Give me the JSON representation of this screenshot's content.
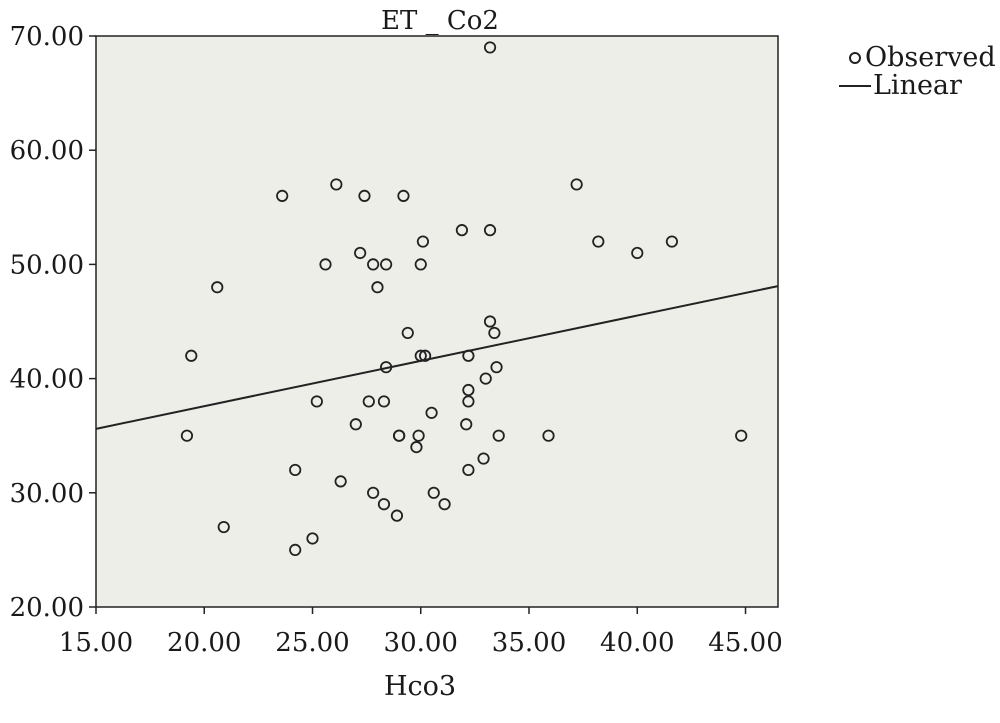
{
  "chart_data": {
    "type": "scatter",
    "title": "ET _ Co2",
    "xlabel": "Hco3",
    "ylabel": "",
    "xlim": [
      15,
      46.5
    ],
    "ylim": [
      20,
      70
    ],
    "x_ticks": [
      "15.00",
      "20.00",
      "25.00",
      "30.00",
      "35.00",
      "40.00",
      "45.00"
    ],
    "y_ticks": [
      "20.00",
      "30.00",
      "40.00",
      "50.00",
      "60.00",
      "70.00"
    ],
    "legend_position": "top-right, outside plot",
    "grid": false,
    "colors": {
      "plot_background": "#eeeee8",
      "marker_stroke": "#222222",
      "line": "#222222"
    },
    "series": [
      {
        "name": "Observed",
        "kind": "points",
        "points": [
          [
            33.2,
            69
          ],
          [
            23.6,
            56
          ],
          [
            26.1,
            57
          ],
          [
            27.4,
            56
          ],
          [
            29.2,
            56
          ],
          [
            37.2,
            57
          ],
          [
            31.9,
            53
          ],
          [
            33.2,
            53
          ],
          [
            30.1,
            52
          ],
          [
            38.2,
            52
          ],
          [
            41.6,
            52
          ],
          [
            40.0,
            51
          ],
          [
            27.2,
            51
          ],
          [
            25.6,
            50
          ],
          [
            27.8,
            50
          ],
          [
            28.4,
            50
          ],
          [
            30.0,
            50
          ],
          [
            20.6,
            48
          ],
          [
            28.0,
            48
          ],
          [
            33.2,
            45
          ],
          [
            29.4,
            44
          ],
          [
            33.4,
            44
          ],
          [
            19.4,
            42
          ],
          [
            30.0,
            42
          ],
          [
            30.2,
            42
          ],
          [
            32.2,
            42
          ],
          [
            28.4,
            41
          ],
          [
            33.5,
            41
          ],
          [
            33.0,
            40
          ],
          [
            32.2,
            39
          ],
          [
            25.2,
            38
          ],
          [
            27.6,
            38
          ],
          [
            28.3,
            38
          ],
          [
            32.2,
            38
          ],
          [
            30.5,
            37
          ],
          [
            27.0,
            36
          ],
          [
            32.1,
            36
          ],
          [
            19.2,
            35
          ],
          [
            29.0,
            35
          ],
          [
            29.0,
            35
          ],
          [
            29.9,
            35
          ],
          [
            33.6,
            35
          ],
          [
            35.9,
            35
          ],
          [
            44.8,
            35
          ],
          [
            29.8,
            34
          ],
          [
            32.9,
            33
          ],
          [
            24.2,
            32
          ],
          [
            32.2,
            32
          ],
          [
            26.3,
            31
          ],
          [
            27.8,
            30
          ],
          [
            30.6,
            30
          ],
          [
            28.3,
            29
          ],
          [
            31.1,
            29
          ],
          [
            28.9,
            28
          ],
          [
            20.9,
            27
          ],
          [
            25.0,
            26
          ],
          [
            24.2,
            25
          ]
        ]
      },
      {
        "name": "Linear",
        "kind": "line",
        "x": [
          15,
          46.5
        ],
        "y": [
          35.6,
          48.1
        ]
      }
    ]
  }
}
